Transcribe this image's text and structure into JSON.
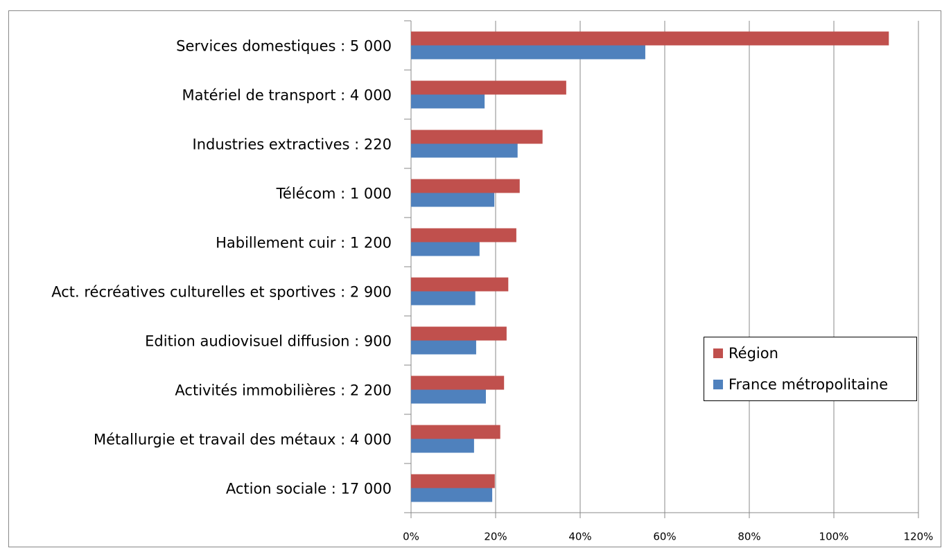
{
  "chart_data": {
    "type": "hbar",
    "categories": [
      "Services domestiques : 5 000",
      "Matériel de transport : 4 000",
      "Industries extractives : 220",
      "Télécom : 1 000",
      "Habillement cuir : 1 200",
      "Act. récréatives culturelles et sportives : 2 900",
      "Edition audiovisuel diffusion : 900",
      "Activités immobilières : 2 200",
      "Métallurgie et travail des métaux : 4 000",
      "Action sociale : 17 000"
    ],
    "series": [
      {
        "name": "Région",
        "color": "#c0504d",
        "values": [
          113,
          36.7,
          31.1,
          25.7,
          24.9,
          23,
          22.6,
          22,
          21.1,
          19.8
        ]
      },
      {
        "name": "France métropolitaine",
        "color": "#4f81bd",
        "values": [
          55.4,
          17.4,
          25.2,
          19.7,
          16.2,
          15.2,
          15.4,
          17.7,
          14.9,
          19.2
        ]
      }
    ],
    "xlim": [
      0,
      120
    ],
    "xticks": [
      {
        "value": 0,
        "label": "0%"
      },
      {
        "value": 20,
        "label": "20%"
      },
      {
        "value": 40,
        "label": "40%"
      },
      {
        "value": 60,
        "label": "60%"
      },
      {
        "value": 80,
        "label": "80%"
      },
      {
        "value": 100,
        "label": "100%"
      },
      {
        "value": 120,
        "label": "120%"
      }
    ],
    "grid": true
  }
}
